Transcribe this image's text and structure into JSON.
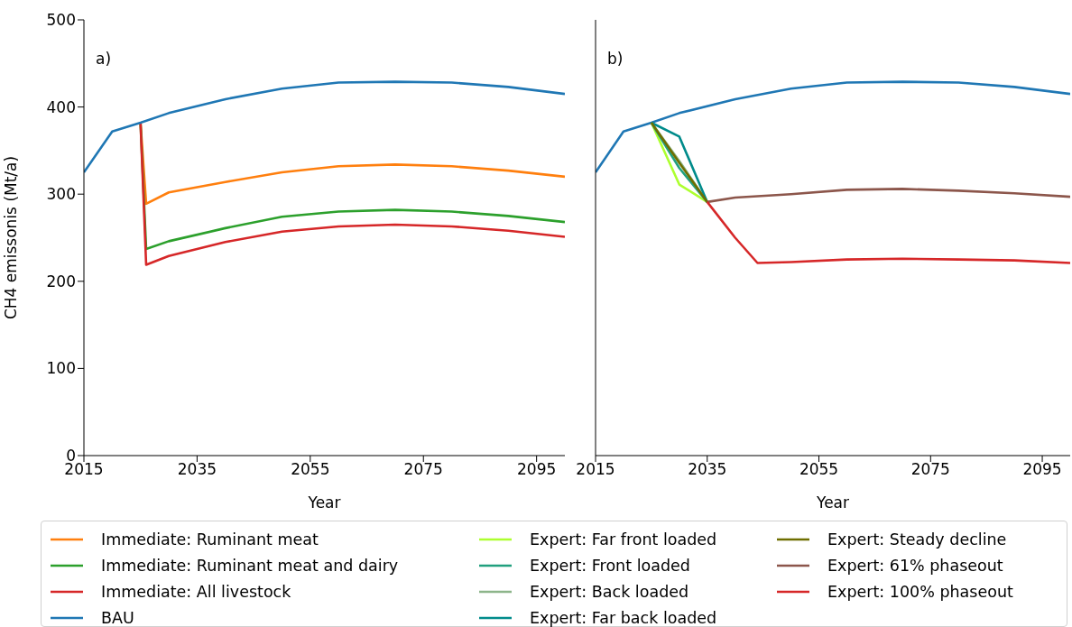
{
  "chart_data": [
    {
      "type": "line",
      "annotations": [
        "a)"
      ],
      "xlabel": "Year",
      "ylabel": "CH4 emissonis (Mt/a)",
      "xlim": [
        2015,
        2100
      ],
      "xticks": [
        2015,
        2035,
        2055,
        2075,
        2095
      ],
      "ylim": [
        0,
        500
      ],
      "yticks": [
        0,
        100,
        200,
        300,
        400,
        500
      ],
      "legend": "bottom",
      "series": [
        {
          "name": "Immediate: Ruminant meat",
          "color": "#ff7f0e",
          "x": [
            2025,
            2026,
            2030,
            2040,
            2050,
            2060,
            2070,
            2080,
            2090,
            2100
          ],
          "values": [
            382,
            289,
            302,
            314,
            325,
            332,
            334,
            332,
            327,
            320
          ]
        },
        {
          "name": "Immediate: Ruminant meat and dairy",
          "color": "#2ca02c",
          "x": [
            2025,
            2026,
            2030,
            2040,
            2050,
            2060,
            2070,
            2080,
            2090,
            2100
          ],
          "values": [
            382,
            237,
            246,
            261,
            274,
            280,
            282,
            280,
            275,
            268
          ]
        },
        {
          "name": "Immediate: All livestock",
          "color": "#d62728",
          "x": [
            2025,
            2026,
            2030,
            2040,
            2050,
            2060,
            2070,
            2080,
            2090,
            2100
          ],
          "values": [
            382,
            219,
            229,
            245,
            257,
            263,
            265,
            263,
            258,
            251
          ]
        },
        {
          "name": "BAU",
          "color": "#1f77b4",
          "x": [
            2015,
            2020,
            2025,
            2030,
            2040,
            2050,
            2060,
            2070,
            2080,
            2090,
            2100
          ],
          "values": [
            325,
            372,
            382,
            393,
            409,
            421,
            428,
            429,
            428,
            423,
            415
          ]
        }
      ]
    },
    {
      "type": "line",
      "annotations": [
        "b)"
      ],
      "xlabel": "Year",
      "xlim": [
        2015,
        2100
      ],
      "xticks": [
        2015,
        2035,
        2055,
        2075,
        2095
      ],
      "ylim": [
        0,
        500
      ],
      "yticks": [
        0,
        100,
        200,
        300,
        400,
        500
      ],
      "tick_labels": "x",
      "legend": "bottom",
      "series": [
        {
          "color": "#1f77b4",
          "x": [
            2015,
            2020,
            2025,
            2030,
            2040,
            2050,
            2060,
            2070,
            2080,
            2090,
            2100
          ],
          "values": [
            325,
            372,
            382,
            393,
            409,
            421,
            428,
            429,
            428,
            423,
            415
          ]
        },
        {
          "name": "Expert: Far front loaded",
          "color": "#adff2f",
          "x": [
            2025,
            2030,
            2035
          ],
          "values": [
            382,
            311,
            291
          ]
        },
        {
          "name": "Expert: Front loaded",
          "color": "#21a07e",
          "x": [
            2025,
            2030,
            2035
          ],
          "values": [
            382,
            330,
            291
          ]
        },
        {
          "name": "Expert: Back loaded",
          "color": "#8db58a",
          "x": [
            2025,
            2030,
            2035
          ],
          "values": [
            382,
            338,
            291
          ]
        },
        {
          "name": "Expert: Far back loaded",
          "color": "#008b8b",
          "x": [
            2025,
            2030,
            2035
          ],
          "values": [
            382,
            366,
            291
          ]
        },
        {
          "name": "Expert: Steady decline",
          "color": "#6e6e00",
          "x": [
            2025,
            2030,
            2035
          ],
          "values": [
            382,
            336,
            291
          ]
        },
        {
          "name": "Expert: 61% phaseout",
          "color": "#8c564b",
          "x": [
            2035,
            2040,
            2050,
            2060,
            2070,
            2080,
            2090,
            2100
          ],
          "values": [
            291,
            296,
            300,
            305,
            306,
            304,
            301,
            297
          ]
        },
        {
          "name": "Expert: 100% phaseout",
          "color": "#d62728",
          "x": [
            2035,
            2040,
            2044,
            2050,
            2060,
            2070,
            2080,
            2090,
            2100
          ],
          "values": [
            291,
            250,
            221,
            222,
            225,
            226,
            225,
            224,
            221
          ]
        }
      ]
    }
  ]
}
